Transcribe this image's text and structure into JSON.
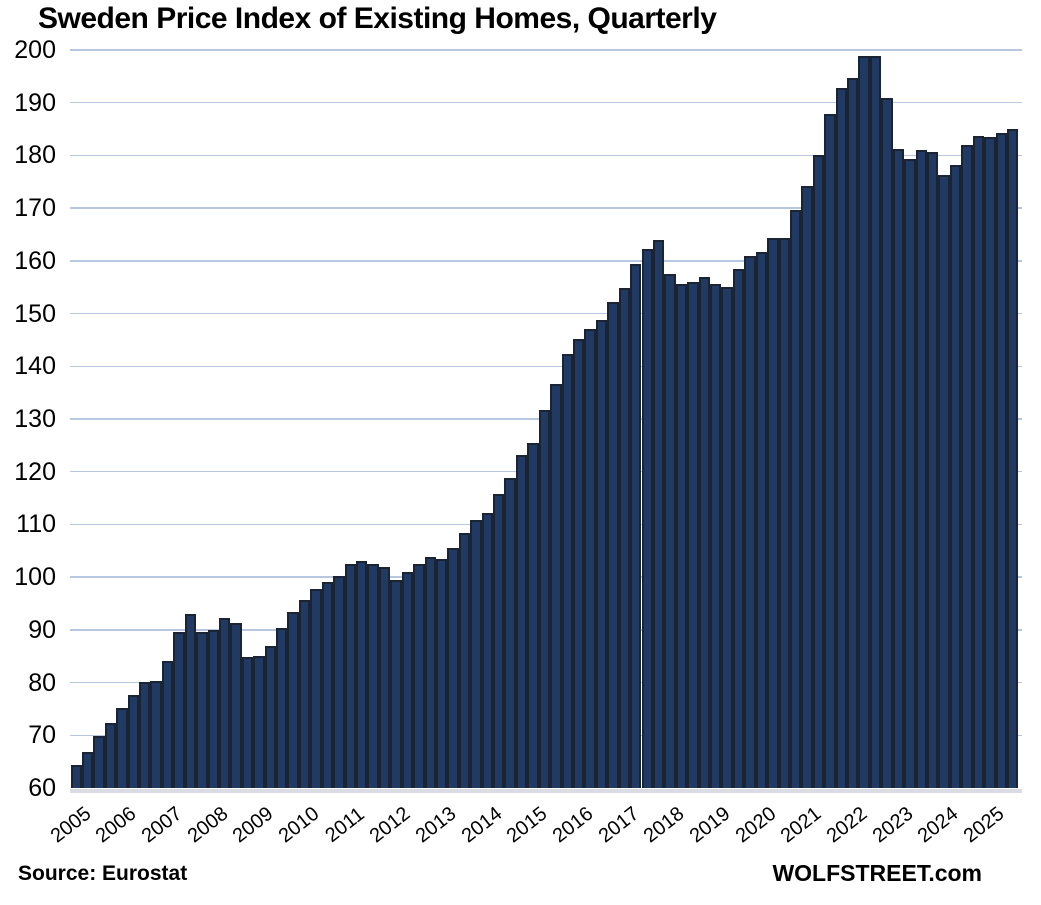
{
  "title": "Sweden Price Index of Existing Homes, Quarterly",
  "source_label": "Source: Eurostat",
  "branding": "WOLFSTREET.com",
  "colors": {
    "bar_fill": "#213a63",
    "bar_border": "#1a2433",
    "gridline": "#b7c7e0",
    "baseline_shadow": "#d9dde3",
    "text": "#000000",
    "background": "#ffffff"
  },
  "chart_data": {
    "type": "bar",
    "title": "Sweden Price Index of Existing Homes, Quarterly",
    "xlabel": "",
    "ylabel": "",
    "ylim": [
      60,
      200
    ],
    "yticks": [
      60,
      70,
      80,
      90,
      100,
      110,
      120,
      130,
      140,
      150,
      160,
      170,
      180,
      190,
      200
    ],
    "grid": "horizontal",
    "legend_position": "none",
    "xtick_years": [
      2005,
      2006,
      2007,
      2008,
      2009,
      2010,
      2011,
      2012,
      2013,
      2014,
      2015,
      2016,
      2017,
      2018,
      2019,
      2020,
      2021,
      2022,
      2023,
      2024,
      2025
    ],
    "categories": [
      "2005 Q1",
      "2005 Q2",
      "2005 Q3",
      "2005 Q4",
      "2006 Q1",
      "2006 Q2",
      "2006 Q3",
      "2006 Q4",
      "2007 Q1",
      "2007 Q2",
      "2007 Q3",
      "2007 Q4",
      "2008 Q1",
      "2008 Q2",
      "2008 Q3",
      "2008 Q4",
      "2009 Q1",
      "2009 Q2",
      "2009 Q3",
      "2009 Q4",
      "2010 Q1",
      "2010 Q2",
      "2010 Q3",
      "2010 Q4",
      "2011 Q1",
      "2011 Q2",
      "2011 Q3",
      "2011 Q4",
      "2012 Q1",
      "2012 Q2",
      "2012 Q3",
      "2012 Q4",
      "2013 Q1",
      "2013 Q2",
      "2013 Q3",
      "2013 Q4",
      "2014 Q1",
      "2014 Q2",
      "2014 Q3",
      "2014 Q4",
      "2015 Q1",
      "2015 Q2",
      "2015 Q3",
      "2015 Q4",
      "2016 Q1",
      "2016 Q2",
      "2016 Q3",
      "2016 Q4",
      "2017 Q1",
      "2017 Q2",
      "2017 Q3",
      "2017 Q4",
      "2018 Q1",
      "2018 Q2",
      "2018 Q3",
      "2018 Q4",
      "2019 Q1",
      "2019 Q2",
      "2019 Q3",
      "2019 Q4",
      "2020 Q1",
      "2020 Q2",
      "2020 Q3",
      "2020 Q4",
      "2021 Q1",
      "2021 Q2",
      "2021 Q3",
      "2021 Q4",
      "2022 Q1",
      "2022 Q2",
      "2022 Q3",
      "2022 Q4",
      "2023 Q1",
      "2023 Q2",
      "2023 Q3",
      "2023 Q4",
      "2024 Q1",
      "2024 Q2",
      "2024 Q3",
      "2024 Q4",
      "2025 Q1",
      "2025 Q2",
      "2025 Q3"
    ],
    "values": [
      64.3,
      66.8,
      69.9,
      72.3,
      75.1,
      77.6,
      80.1,
      80.3,
      84.0,
      89.6,
      93.1,
      89.6,
      90.0,
      92.2,
      91.3,
      84.8,
      85.0,
      86.9,
      90.4,
      93.4,
      95.6,
      97.7,
      99.0,
      100.3,
      102.4,
      103.1,
      102.4,
      102.0,
      99.5,
      101.0,
      102.4,
      103.8,
      103.5,
      105.5,
      108.4,
      110.8,
      112.2,
      115.7,
      118.8,
      123.1,
      125.5,
      131.8,
      136.7,
      142.4,
      145.1,
      147.0,
      148.7,
      152.2,
      154.8,
      159.4,
      162.2,
      163.9,
      157.6,
      155.6,
      155.9,
      157.0,
      155.7,
      155.1,
      158.4,
      160.9,
      161.7,
      164.4,
      164.4,
      169.6,
      174.2,
      180.0,
      187.9,
      192.7,
      194.7,
      198.8,
      198.8,
      190.8,
      181.3,
      179.4,
      181.0,
      180.7,
      176.3,
      178.2,
      182.0,
      183.7,
      183.5,
      184.3,
      185.0
    ]
  }
}
